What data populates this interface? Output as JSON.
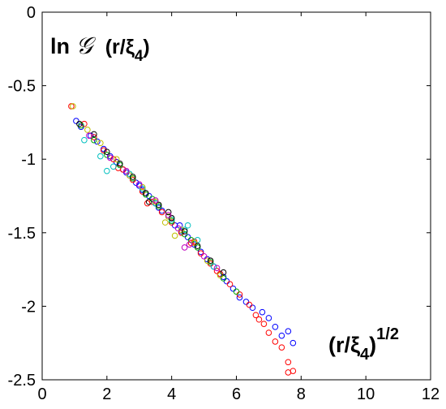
{
  "chart_data": {
    "type": "scatter",
    "title": "",
    "xlabel": "",
    "ylabel": "",
    "annotations": {
      "ylabel_prefix": "ln",
      "ylabel_symbol": "𝒢",
      "ylabel_arg": "(r/ξ",
      "ylabel_sub": "4",
      "ylabel_close": ")",
      "xlabel_main": "(r/ξ",
      "xlabel_sub": "4",
      "xlabel_close": ")",
      "xlabel_sup": "1/2"
    },
    "xlim": [
      0,
      12
    ],
    "ylim": [
      -2.5,
      0
    ],
    "xticks": [
      0,
      2,
      4,
      6,
      8,
      10,
      12
    ],
    "yticks": [
      0,
      -0.5,
      -1,
      -1.5,
      -2,
      -2.5
    ],
    "xtick_labels": [
      "0",
      "2",
      "4",
      "6",
      "8",
      "10",
      "12"
    ],
    "ytick_labels": [
      "0",
      "-0.5",
      "-1",
      "-1.5",
      "-2",
      "-2.5"
    ],
    "marker": "open-circle",
    "grid": false,
    "legend": "none",
    "series": [
      {
        "color": "#0000ff",
        "points": [
          [
            1.05,
            -0.74
          ],
          [
            1.2,
            -0.78
          ],
          [
            1.5,
            -0.84
          ],
          [
            1.7,
            -0.88
          ],
          [
            1.9,
            -0.93
          ],
          [
            2.1,
            -0.98
          ],
          [
            2.3,
            -1.02
          ],
          [
            2.5,
            -1.07
          ],
          [
            2.7,
            -1.11
          ],
          [
            2.9,
            -1.16
          ],
          [
            3.1,
            -1.21
          ],
          [
            3.3,
            -1.25
          ],
          [
            3.5,
            -1.3
          ],
          [
            3.7,
            -1.35
          ],
          [
            3.9,
            -1.39
          ],
          [
            4.1,
            -1.45
          ],
          [
            4.3,
            -1.49
          ],
          [
            4.5,
            -1.53
          ],
          [
            4.7,
            -1.58
          ],
          [
            4.9,
            -1.63
          ],
          [
            5.1,
            -1.68
          ],
          [
            5.3,
            -1.73
          ],
          [
            5.5,
            -1.78
          ],
          [
            5.7,
            -1.83
          ],
          [
            5.9,
            -1.88
          ],
          [
            6.1,
            -1.94
          ],
          [
            6.3,
            -1.97
          ],
          [
            6.5,
            -2.01
          ],
          [
            6.8,
            -2.04
          ],
          [
            7.0,
            -2.08
          ],
          [
            7.2,
            -2.14
          ],
          [
            7.4,
            -2.2
          ],
          [
            7.6,
            -2.17
          ],
          [
            7.75,
            -2.25
          ],
          [
            4.25,
            -1.45
          ],
          [
            3.6,
            -1.33
          ],
          [
            5.6,
            -1.8
          ],
          [
            3.0,
            -1.18
          ],
          [
            2.6,
            -1.09
          ]
        ]
      },
      {
        "color": "#ff0000",
        "points": [
          [
            0.9,
            -0.64
          ],
          [
            1.3,
            -0.76
          ],
          [
            1.6,
            -0.85
          ],
          [
            1.9,
            -0.94
          ],
          [
            2.2,
            -1.0
          ],
          [
            2.5,
            -1.07
          ],
          [
            2.8,
            -1.14
          ],
          [
            3.1,
            -1.22
          ],
          [
            3.4,
            -1.29
          ],
          [
            3.7,
            -1.36
          ],
          [
            4.0,
            -1.43
          ],
          [
            4.3,
            -1.5
          ],
          [
            4.6,
            -1.57
          ],
          [
            4.9,
            -1.64
          ],
          [
            5.2,
            -1.71
          ],
          [
            5.5,
            -1.78
          ],
          [
            5.8,
            -1.85
          ],
          [
            6.1,
            -1.92
          ],
          [
            6.4,
            -1.99
          ],
          [
            6.6,
            -2.06
          ],
          [
            6.85,
            -2.12
          ],
          [
            7.0,
            -2.18
          ],
          [
            7.2,
            -2.24
          ],
          [
            7.4,
            -2.28
          ],
          [
            7.6,
            -2.38
          ],
          [
            7.75,
            -2.44
          ],
          [
            7.6,
            -2.45
          ],
          [
            6.7,
            -2.09
          ],
          [
            5.4,
            -1.76
          ],
          [
            4.7,
            -1.56
          ],
          [
            3.25,
            -1.3
          ],
          [
            2.35,
            -1.06
          ]
        ]
      },
      {
        "color": "#00aa00",
        "points": [
          [
            1.2,
            -0.77
          ],
          [
            1.6,
            -0.87
          ],
          [
            2.0,
            -0.97
          ],
          [
            2.4,
            -1.04
          ],
          [
            2.8,
            -1.13
          ],
          [
            3.2,
            -1.24
          ],
          [
            3.6,
            -1.32
          ],
          [
            4.0,
            -1.42
          ],
          [
            4.4,
            -1.51
          ],
          [
            4.8,
            -1.6
          ],
          [
            5.2,
            -1.7
          ],
          [
            5.6,
            -1.81
          ],
          [
            6.0,
            -1.9
          ],
          [
            3.4,
            -1.27
          ],
          [
            4.6,
            -1.55
          ]
        ]
      },
      {
        "color": "#00bfbf",
        "points": [
          [
            1.3,
            -0.87
          ],
          [
            1.8,
            -0.98
          ],
          [
            2.2,
            -1.05
          ],
          [
            2.7,
            -1.1
          ],
          [
            3.1,
            -1.2
          ],
          [
            3.5,
            -1.3
          ],
          [
            4.0,
            -1.41
          ],
          [
            4.4,
            -1.48
          ],
          [
            4.8,
            -1.55
          ],
          [
            5.3,
            -1.73
          ],
          [
            2.0,
            -1.08
          ],
          [
            4.5,
            -1.45
          ]
        ]
      },
      {
        "color": "#bfbf00",
        "points": [
          [
            0.95,
            -0.64
          ],
          [
            1.4,
            -0.8
          ],
          [
            1.8,
            -0.89
          ],
          [
            2.3,
            -1.0
          ],
          [
            2.7,
            -1.11
          ],
          [
            3.1,
            -1.19
          ],
          [
            3.5,
            -1.29
          ],
          [
            3.9,
            -1.39
          ],
          [
            4.3,
            -1.48
          ],
          [
            4.7,
            -1.57
          ],
          [
            5.1,
            -1.69
          ],
          [
            5.5,
            -1.79
          ],
          [
            3.8,
            -1.43
          ],
          [
            4.1,
            -1.52
          ]
        ]
      },
      {
        "color": "#000000",
        "points": [
          [
            1.15,
            -0.76
          ],
          [
            1.6,
            -0.83
          ],
          [
            2.0,
            -0.95
          ],
          [
            2.4,
            -1.03
          ],
          [
            2.8,
            -1.12
          ],
          [
            3.2,
            -1.23
          ],
          [
            3.6,
            -1.31
          ],
          [
            4.0,
            -1.4
          ],
          [
            4.4,
            -1.49
          ],
          [
            4.8,
            -1.59
          ],
          [
            5.2,
            -1.69
          ],
          [
            5.6,
            -1.77
          ],
          [
            3.3,
            -1.29
          ],
          [
            3.9,
            -1.36
          ]
        ]
      },
      {
        "color": "#bf00bf",
        "points": [
          [
            1.45,
            -0.84
          ],
          [
            2.1,
            -0.99
          ],
          [
            2.6,
            -1.08
          ],
          [
            3.0,
            -1.17
          ],
          [
            3.5,
            -1.28
          ],
          [
            3.9,
            -1.38
          ],
          [
            4.2,
            -1.47
          ],
          [
            4.55,
            -1.58
          ],
          [
            5.0,
            -1.66
          ],
          [
            5.4,
            -1.74
          ],
          [
            4.4,
            -1.6
          ]
        ]
      }
    ]
  }
}
